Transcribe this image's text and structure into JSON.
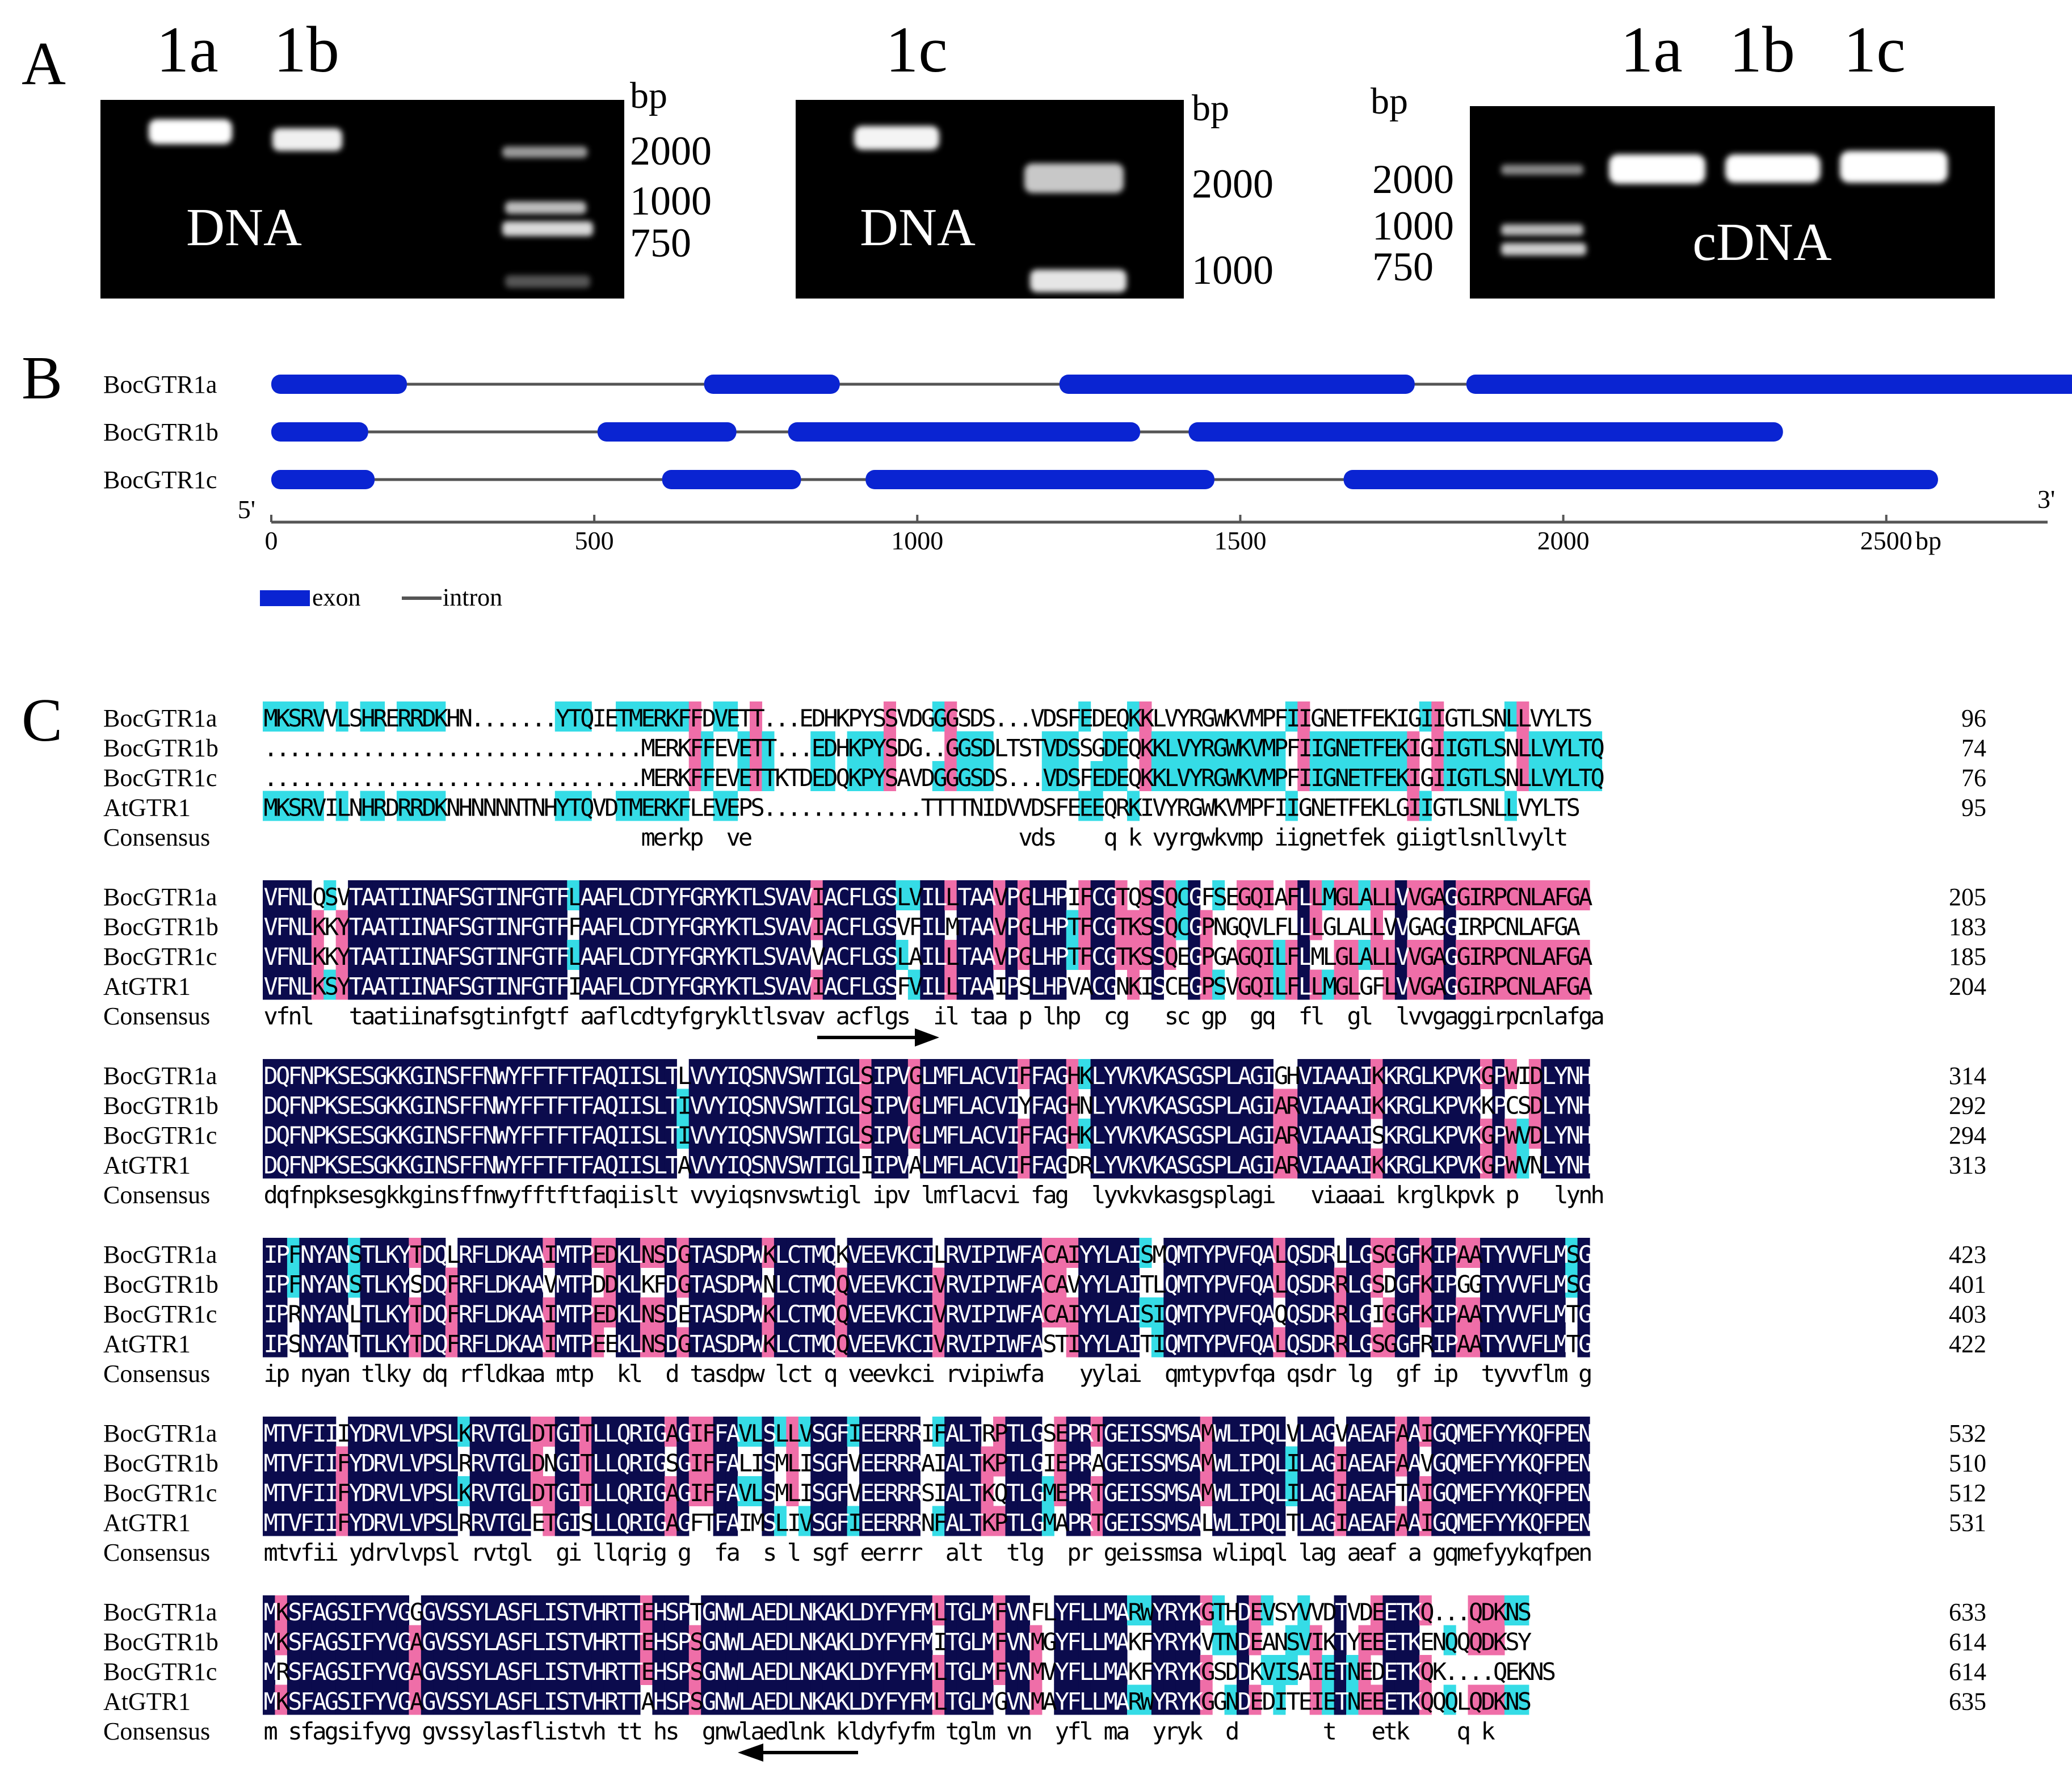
{
  "panel_a": {
    "letter": "A",
    "gel1": {
      "lanes": [
        "1a",
        "1b"
      ],
      "unit": "bp",
      "markers": [
        "2000",
        "1000",
        "750"
      ],
      "label": "DNA"
    },
    "gel2": {
      "lanes": [
        "1c"
      ],
      "unit": "bp",
      "markers": [
        "2000",
        "1000"
      ],
      "label": "DNA"
    },
    "gel3": {
      "lanes": [
        "1a",
        "1b",
        "1c"
      ],
      "unit": "bp",
      "markers": [
        "2000",
        "1000",
        "750"
      ],
      "label": "cDNA"
    }
  },
  "panel_b": {
    "letter": "B",
    "genes": [
      {
        "name": "BocGTR1a",
        "length": 2800,
        "exons": [
          [
            0,
            210
          ],
          [
            670,
            880
          ],
          [
            1220,
            1770
          ],
          [
            1850,
            2800
          ]
        ]
      },
      {
        "name": "BocGTR1b",
        "length": 2340,
        "exons": [
          [
            0,
            150
          ],
          [
            505,
            720
          ],
          [
            800,
            1345
          ],
          [
            1420,
            2340
          ]
        ]
      },
      {
        "name": "BocGTR1c",
        "length": 2580,
        "exons": [
          [
            0,
            160
          ],
          [
            605,
            820
          ],
          [
            920,
            1460
          ],
          [
            1660,
            2580
          ]
        ]
      }
    ],
    "axis": {
      "five": "5'",
      "three": "3'",
      "ticks": [
        "0",
        "500",
        "1000",
        "1500",
        "2000",
        "2500"
      ],
      "unit": "bp"
    },
    "legend": {
      "exon": "exon",
      "intron": "intron"
    },
    "colors": {
      "exon": "#0a24d2",
      "intron": "#555555"
    }
  },
  "panel_c": {
    "letter": "C",
    "colors": {
      "identical": "#0b0b4d",
      "high": "#ef6ea8",
      "medium": "#35dce6"
    },
    "blocks": [
      {
        "rows": [
          {
            "name": "BocGTR1a",
            "seq": "MKSRVVLSHRERRDKHN.......YTQIETMERKFFDVETT...EDHKPYSSVDGGGSDS...VDSFEDEQKKLVYRGWKVMPFIIGNETFEKIGIIGTLSNLLVYLTS",
            "num": "96"
          },
          {
            "name": "BocGTR1b",
            "seq": "...............................MERKFFEVETT...EDHKPYSDG..GGSDLTSTVDSSGDEQKKLVYRGWKVMPFIIGNETFEKIGIIGTLSNLLVYLTQ",
            "num": "74"
          },
          {
            "name": "BocGTR1c",
            "seq": "...............................MERKFFEVETTKTDEDQKPYSAVDGGGSDS...VDSFEDEQKKLVYRGWKVMPFIIGNETFEKIGIIGTLSNLLVYLTQ",
            "num": "76"
          },
          {
            "name": "AtGTR1",
            "seq": "MKSRVILNHRDRRDKNHNNNNTNHYTQVDTMERKFLEVEPS.............TTTTNIDVVDSFEEEQRKIVYRGWKVMPFIIGNETFEKLGIIGTLSNLLVYLTS",
            "num": "95"
          }
        ],
        "consensus": {
          "name": "Consensus",
          "seq": "                               merkp  ve                      vds    q k vyrgwkvmp iignetfek giigtlsnllvylt "
        }
      },
      {
        "rows": [
          {
            "name": "BocGTR1a",
            "seq": "VFNLQSVTAATIINAFSGTINFGTFLAAFLCDTYFGRYKTLSVAVIACFLGSLVILLTAAVPGLHPIFCGTQSSQCGFSEGQIAFLLMGLALLVVGAGGIRPCNLAFGA",
            "num": "205"
          },
          {
            "name": "BocGTR1b",
            "seq": "VFNLKKYTAATIINAFSGTINFGTFFAAFLCDTYFGRYKTLSVAVIACFLGSVFILMTAAVPGLHPTFCGTKSSQCGPNGQVLFLLLGLALLVVGAGGIRPCNLAFGA",
            "num": "183"
          },
          {
            "name": "BocGTR1c",
            "seq": "VFNLKKYTAATIINAFSGTINFGTFLAAFLCDTYFGRYKTLSVAVVACFLGSLAILLTAAVPGLHPTFCGTKSSQEGPGAGQILFLMLGLALLVVGAGGIRPCNLAFGA",
            "num": "185"
          },
          {
            "name": "AtGTR1",
            "seq": "VFNLKSYTAATIINAFSGTINFGTFIAAFLCDTYFGRYKTLSVAVIACFLGSFVILLTAAIPSLHPVACGNKISCEGPSVGQILFLLMGLGFLVVGAGGIRPCNLAFGA",
            "num": "204"
          }
        ],
        "consensus": {
          "name": "Consensus",
          "seq": "vfnl   taatiinafsgtinfgtf aaflcdtyfgrykltlsvav acflgs  il taa p lhp  cg   sc gp  gq  fl  gl  lvvgaggirpcnlafga"
        }
      },
      {
        "rows": [
          {
            "name": "BocGTR1a",
            "seq": "DQFNPKSESGKKGINSFFNWYFFTFTFAQIISLTLVVYIQSNVSWTIGLSIPVGLMFLACVIFFAGHKLYVKVKASGSPLAGIGHVIAAAIKKRGLKPVKGPWIDLYNH",
            "num": "314"
          },
          {
            "name": "BocGTR1b",
            "seq": "DQFNPKSESGKKGINSFFNWYFFTFTFAQIISLTIVVYIQSNVSWTIGLSIPVGLMFLACVIYFAGHNLYVKVKASGSPLAGIARVIAAAIKKRGLKPVKKPCSDLYNH",
            "num": "292"
          },
          {
            "name": "BocGTR1c",
            "seq": "DQFNPKSESGKKGINSFFNWYFFTFTFAQIISLTIVVYIQSNVSWTIGLSIPVGLMFLACVIFFAGHKLYVKVKASGSPLAGIARVIAAAISKRGLKPVKGPWVDLYNH",
            "num": "294"
          },
          {
            "name": "AtGTR1",
            "seq": "DQFNPKSESGKKGINSFFNWYFFTFTFAQIISLTAVVYIQSNVSWTIGLIIPVALMFLACVIFFAGDRLYVKVKASGSPLAGIARVIAAAIKKRGLKPVKGPWVNLYNH",
            "num": "313"
          }
        ],
        "consensus": {
          "name": "Consensus",
          "seq": "dqfnpksesgkkginsffnwyfftftfaqiislt vvyiqsnvswtigl ipv lmflacvi fag  lyvkvkasgsplagi   viaaai krglkpvk p   lynh"
        }
      },
      {
        "rows": [
          {
            "name": "BocGTR1a",
            "seq": "IPFNYANSTLKYTDQLRFLDKAAIMTPEDKLNSDGTASDPWKLCTMQKVEEVKCILRVIPIWFACAIYYLAISMQMTYPVFQALQSDRLLGSGGFKIPAATYVVFLMSG",
            "num": "423"
          },
          {
            "name": "BocGTR1b",
            "seq": "IPFNYANSTLKYSDQFRFLDKAAVMTPDDKLKFDGTASDPWNLCTMQQVEEVKCIVRVIPIWFACAVYYLAITLQMTYPVFQALQSDRRLGSDGFKIPGGTYVVFLMSG",
            "num": "401"
          },
          {
            "name": "BocGTR1c",
            "seq": "IPRNYANLTLKYTDQFRFLDKAAIMTPEDKLNSDETASDPWKLCTMQQVEEVKCIVRVIPIWFACAIYYLAISIQMTYPVFQAQQSDRRLGIGGFKIPAATYVVFLMTG",
            "num": "403"
          },
          {
            "name": "AtGTR1",
            "seq": "IPSNYANTTLKYTDQFRFLDKAAIMTPEEKLNSDGTASDPWKLCTMQQVEEVKCIVRVIPIWFASTIYYLAITIQMTYPVFQALQSDRRLGSGGFRIPAATYVVFLMTG",
            "num": "422"
          }
        ],
        "consensus": {
          "name": "Consensus",
          "seq": "ip nyan tlky dq rfldkaa mtp  kl  d tasdpw lct q veevkci rvipiwfa   yylai  qmtypvfqa qsdr lg  gf ip  tyvvflm g"
        }
      },
      {
        "rows": [
          {
            "name": "BocGTR1a",
            "seq": "MTVFIIIYDRVLVPSLKRVTGLDTGITLLQRIGAGIFFAVLSLLVSGFIEERRRIFALTRPTLGSEPRTGEISSMSAMWLIPQLVLAGVAEAFAAIGQMEFYYKQFPEN",
            "num": "532"
          },
          {
            "name": "BocGTR1b",
            "seq": "MTVFIIFYDRVLVPSLRRVTGLDNGITLLQRIGSGIFFALISMLISGFVEERRRAIALTKPTLGIEPRAGEISSMSAMWLIPQLILAGIAEAFAAVGQMEFYYKQFPEN",
            "num": "510"
          },
          {
            "name": "BocGTR1c",
            "seq": "MTVFIIFYDRVLVPSLKRVTGLDTGITLLQRIGAGIFFAVLSMLISGFVEERRRSIALTKQTLGMEPRTGEISSMSAMWLIPQLILAGIAEAFTAIGQMEFYYKQFPEN",
            "num": "512"
          },
          {
            "name": "AtGTR1",
            "seq": "MTVFIIFYDRVLVPSLRRVTGLETGISLLQRIGAGFTFAIMSLIVSGFIEERRRNFALTKPTLGMAPRTGEISSMSALWLIPQLTLAGIAEAFAAIGQMEFYYKQFPEN",
            "num": "531"
          }
        ],
        "consensus": {
          "name": "Consensus",
          "seq": "mtvfii ydrvlvpsl rvtgl  gi llqrig g  fa  s l sgf eerrr  alt  tlg  pr geissmsa wlipql lag aeaf a gqmefyykqfpen"
        }
      },
      {
        "rows": [
          {
            "name": "BocGTR1a",
            "seq": "MKSFAGSIFYVGGGVSSYLASFLISTVHRTTEHSPTGNWLAEDLNKAKLDYFYFMLTGLMFVNFLYFLLMARWYRYKGTHDEVSYVVDTVDEETKQ...QDKNS",
            "num": "633"
          },
          {
            "name": "BocGTR1b",
            "seq": "MKSFAGSIFYVGAGVSSYLASFLISTVHRTTEHSPSGNWLAEDLNKAKLDYFYFMITGLMFVNMGYFLLMAKFYRYKVTNDEANSVIKTYEEETKENQQQDKSY",
            "num": "614"
          },
          {
            "name": "BocGTR1c",
            "seq": "MRSFAGSIFYVGAGVSSYLASFLISTVHRTTEHSPSGNWLAEDLNKAKLDYFYFMLTGLMFVNMVYFLLMAKFYRYKGSDDKVISAIETNEDETKQK....QEKNS",
            "num": "614"
          },
          {
            "name": "AtGTR1",
            "seq": "MKSFAGSIFYVGAGVSSYLASFLISTVHRTTAHSPSGNWLAEDLNKAKLDYFYFMLTGLMGVNMAYFLLMARWYRYKGGNDEDITEIETNEEETKQQQLQDKNS",
            "num": "635"
          }
        ],
        "consensus": {
          "name": "Consensus",
          "seq": "m sfagsifyvg gvssylasflistvh tt hs  gnwlaedlnk kldyfyfm tglm vn  yfl ma  yryk  d       t   etk    q k"
        }
      }
    ]
  }
}
